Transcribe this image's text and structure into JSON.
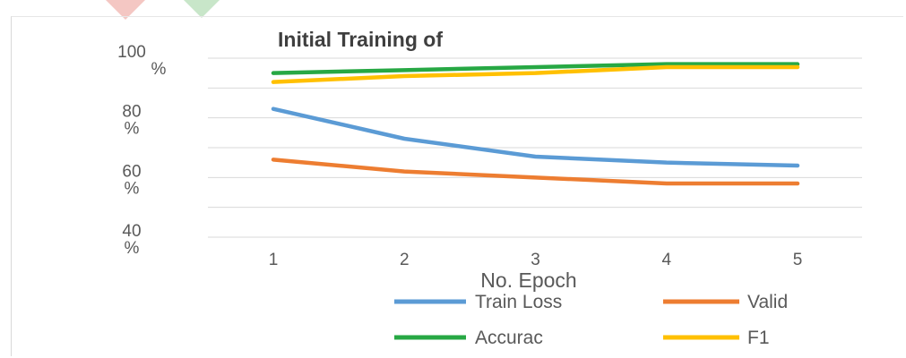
{
  "chart_data": {
    "type": "line",
    "title": "Initial Training of",
    "xlabel": "No. Epoch",
    "ylabel": "",
    "categories": [
      "1",
      "2",
      "3",
      "4",
      "5"
    ],
    "y_ticks": [
      {
        "value": 100,
        "lines": [
          "100",
          "%"
        ]
      },
      {
        "value": 80,
        "lines": [
          "80",
          "%"
        ]
      },
      {
        "value": 60,
        "lines": [
          "60",
          "%"
        ]
      },
      {
        "value": 40,
        "lines": [
          "40",
          "%"
        ]
      }
    ],
    "ylim": [
      40,
      100
    ],
    "grid": true,
    "legend_position": "bottom",
    "series": [
      {
        "name": "Train Loss",
        "color": "#5b9bd5",
        "values": [
          83,
          73,
          67,
          65,
          64
        ]
      },
      {
        "name": "Valid",
        "color": "#ed7d31",
        "values": [
          66,
          62,
          60,
          58,
          58
        ]
      },
      {
        "name": "Accurac",
        "color": "#27a844",
        "values": [
          95,
          96,
          97,
          98,
          98
        ]
      },
      {
        "name": "F1",
        "color": "#ffc000",
        "values": [
          92,
          94,
          95,
          97,
          97
        ]
      }
    ]
  }
}
